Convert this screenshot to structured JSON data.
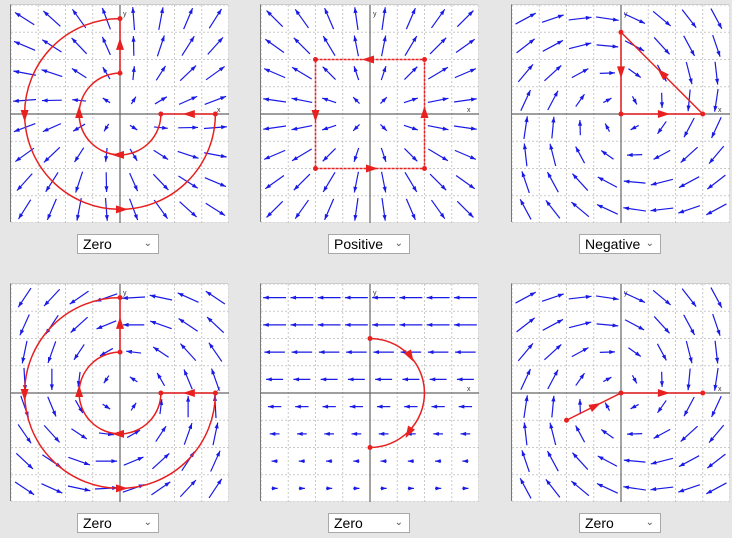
{
  "colors": {
    "vector": "#1a1ae6",
    "path": "#e82020",
    "axis": "#666666",
    "grid": "#c8c8c8"
  },
  "axis_labels": {
    "x": "x",
    "y": "y"
  },
  "panels": [
    {
      "id": "p1",
      "dropdown": {
        "selected": "Zero"
      },
      "field": "radial-rotate",
      "path": "spiral"
    },
    {
      "id": "p2",
      "dropdown": {
        "selected": "Positive"
      },
      "field": "radial",
      "path": "square"
    },
    {
      "id": "p3",
      "dropdown": {
        "selected": "Negative"
      },
      "field": "rotation-cw",
      "path": "triangle"
    },
    {
      "id": "p4",
      "dropdown": {
        "selected": "Zero"
      },
      "field": "rotation-ccw",
      "path": "spiral"
    },
    {
      "id": "p5",
      "dropdown": {
        "selected": "Zero"
      },
      "field": "shear-left",
      "path": "semicircle"
    },
    {
      "id": "p6",
      "dropdown": {
        "selected": "Zero"
      },
      "field": "rotation-cw",
      "path": "segment"
    }
  ]
}
